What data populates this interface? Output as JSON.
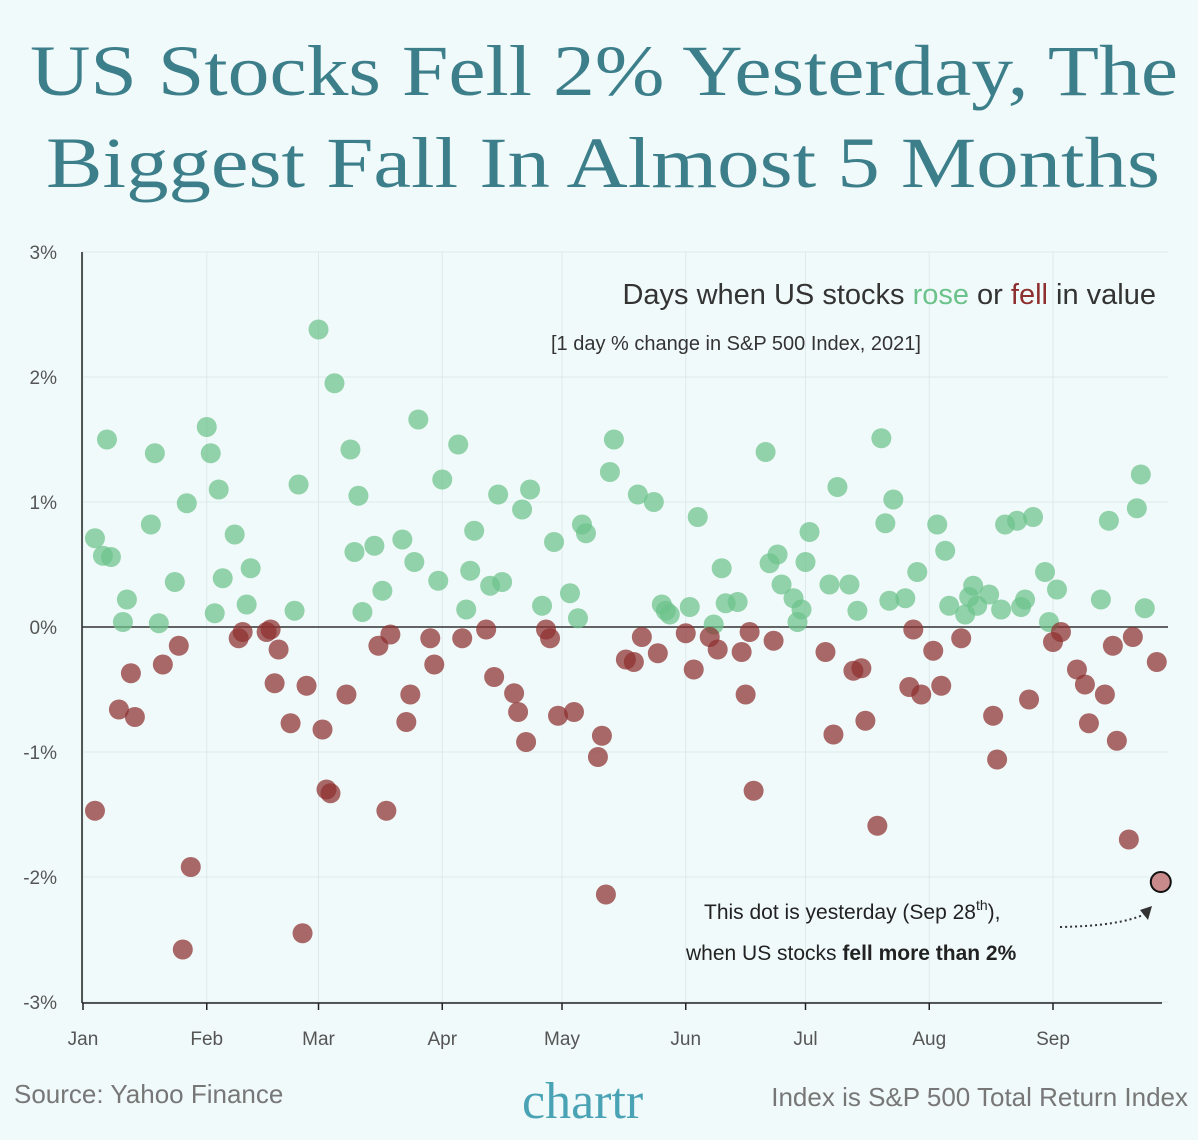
{
  "title": {
    "line1": "US Stocks Fell 2% Yesterday, The",
    "line2": "Biggest Fall In Almost 5 Months"
  },
  "subtitle": {
    "pre": "Days when US stocks ",
    "rose": "rose",
    "mid": " or ",
    "fell": "fell",
    "post": " in value",
    "note": "[1 day % change in S&P 500 Index, 2021]"
  },
  "annotation": {
    "line1_pre": "This dot is yesterday (Sep 28",
    "line1_sup": "th",
    "line1_post": "),",
    "line2_pre": "when US stocks ",
    "line2_bold": "fell more than 2%"
  },
  "footer": {
    "source": "Source: Yahoo Finance",
    "logo": "chartr",
    "note": "Index is S&P 500 Total Return Index"
  },
  "colors": {
    "rose": "#6cc28b",
    "fell": "#8e2f2f",
    "title": "#3c7f8b",
    "background": "#f1fafa",
    "highlight": "#c98a8c"
  },
  "chart_data": {
    "type": "scatter",
    "title": "Days when US stocks rose or fell in value",
    "subtitle": "[1 day % change in S&P 500 Index, 2021]",
    "xlabel": "",
    "ylabel": "",
    "xlim": [
      "2021-01-01",
      "2021-09-30"
    ],
    "ylim": [
      -3,
      3
    ],
    "x_ticks": [
      "Jan",
      "Feb",
      "Mar",
      "Apr",
      "May",
      "Jun",
      "Jul",
      "Aug",
      "Sep"
    ],
    "y_ticks": [
      "3%",
      "2%",
      "1%",
      "0%",
      "-1%",
      "-2%",
      "-3%"
    ],
    "grid": true,
    "series": [
      {
        "name": "rose",
        "points": [
          [
            "2021-01-04",
            0.71
          ],
          [
            "2021-01-06",
            0.57
          ],
          [
            "2021-01-07",
            1.5
          ],
          [
            "2021-01-08",
            0.56
          ],
          [
            "2021-01-11",
            0.04
          ],
          [
            "2021-01-12",
            0.22
          ],
          [
            "2021-01-18",
            0.82
          ],
          [
            "2021-01-19",
            1.39
          ],
          [
            "2021-01-20",
            0.03
          ],
          [
            "2021-01-24",
            0.36
          ],
          [
            "2021-01-27",
            0.99
          ],
          [
            "2021-02-01",
            1.6
          ],
          [
            "2021-02-02",
            1.39
          ],
          [
            "2021-02-03",
            0.11
          ],
          [
            "2021-02-04",
            1.1
          ],
          [
            "2021-02-05",
            0.39
          ],
          [
            "2021-02-08",
            0.74
          ],
          [
            "2021-02-11",
            0.18
          ],
          [
            "2021-02-12",
            0.47
          ],
          [
            "2021-02-23",
            0.13
          ],
          [
            "2021-02-24",
            1.14
          ],
          [
            "2021-03-01",
            2.38
          ],
          [
            "2021-03-05",
            1.95
          ],
          [
            "2021-03-09",
            1.42
          ],
          [
            "2021-03-10",
            0.6
          ],
          [
            "2021-03-11",
            1.05
          ],
          [
            "2021-03-12",
            0.12
          ],
          [
            "2021-03-15",
            0.65
          ],
          [
            "2021-03-17",
            0.29
          ],
          [
            "2021-03-22",
            0.7
          ],
          [
            "2021-03-25",
            0.52
          ],
          [
            "2021-03-26",
            1.66
          ],
          [
            "2021-03-31",
            0.37
          ],
          [
            "2021-04-01",
            1.18
          ],
          [
            "2021-04-05",
            1.46
          ],
          [
            "2021-04-07",
            0.14
          ],
          [
            "2021-04-08",
            0.45
          ],
          [
            "2021-04-09",
            0.77
          ],
          [
            "2021-04-13",
            0.33
          ],
          [
            "2021-04-15",
            1.06
          ],
          [
            "2021-04-16",
            0.36
          ],
          [
            "2021-04-21",
            0.94
          ],
          [
            "2021-04-23",
            1.1
          ],
          [
            "2021-04-26",
            0.17
          ],
          [
            "2021-04-29",
            0.68
          ],
          [
            "2021-05-03",
            0.27
          ],
          [
            "2021-05-05",
            0.07
          ],
          [
            "2021-05-06",
            0.82
          ],
          [
            "2021-05-07",
            0.75
          ],
          [
            "2021-05-13",
            1.24
          ],
          [
            "2021-05-14",
            1.5
          ],
          [
            "2021-05-20",
            1.06
          ],
          [
            "2021-05-24",
            1.0
          ],
          [
            "2021-05-26",
            0.18
          ],
          [
            "2021-05-27",
            0.13
          ],
          [
            "2021-05-28",
            0.1
          ],
          [
            "2021-06-02",
            0.16
          ],
          [
            "2021-06-04",
            0.88
          ],
          [
            "2021-06-08",
            0.02
          ],
          [
            "2021-06-10",
            0.47
          ],
          [
            "2021-06-11",
            0.19
          ],
          [
            "2021-06-14",
            0.2
          ],
          [
            "2021-06-21",
            1.4
          ],
          [
            "2021-06-22",
            0.51
          ],
          [
            "2021-06-24",
            0.58
          ],
          [
            "2021-06-25",
            0.34
          ],
          [
            "2021-06-28",
            0.23
          ],
          [
            "2021-06-29",
            0.04
          ],
          [
            "2021-06-30",
            0.14
          ],
          [
            "2021-07-01",
            0.52
          ],
          [
            "2021-07-02",
            0.76
          ],
          [
            "2021-07-07",
            0.34
          ],
          [
            "2021-07-09",
            1.12
          ],
          [
            "2021-07-12",
            0.34
          ],
          [
            "2021-07-14",
            0.13
          ],
          [
            "2021-07-20",
            1.51
          ],
          [
            "2021-07-21",
            0.83
          ],
          [
            "2021-07-22",
            0.21
          ],
          [
            "2021-07-23",
            1.02
          ],
          [
            "2021-07-26",
            0.23
          ],
          [
            "2021-07-29",
            0.44
          ],
          [
            "2021-08-03",
            0.82
          ],
          [
            "2021-08-05",
            0.61
          ],
          [
            "2021-08-06",
            0.17
          ],
          [
            "2021-08-10",
            0.1
          ],
          [
            "2021-08-11",
            0.24
          ],
          [
            "2021-08-12",
            0.33
          ],
          [
            "2021-08-13",
            0.17
          ],
          [
            "2021-08-16",
            0.26
          ],
          [
            "2021-08-19",
            0.14
          ],
          [
            "2021-08-20",
            0.82
          ],
          [
            "2021-08-23",
            0.85
          ],
          [
            "2021-08-24",
            0.16
          ],
          [
            "2021-08-25",
            0.22
          ],
          [
            "2021-08-27",
            0.88
          ],
          [
            "2021-08-30",
            0.44
          ],
          [
            "2021-08-31",
            0.04
          ],
          [
            "2021-09-02",
            0.3
          ],
          [
            "2021-09-13",
            0.22
          ],
          [
            "2021-09-15",
            0.85
          ],
          [
            "2021-09-22",
            0.95
          ],
          [
            "2021-09-23",
            1.22
          ],
          [
            "2021-09-24",
            0.15
          ]
        ]
      },
      {
        "name": "fell",
        "points": [
          [
            "2021-01-04",
            -1.47
          ],
          [
            "2021-01-10",
            -0.66
          ],
          [
            "2021-01-13",
            -0.37
          ],
          [
            "2021-01-14",
            -0.72
          ],
          [
            "2021-01-21",
            -0.3
          ],
          [
            "2021-01-25",
            -0.15
          ],
          [
            "2021-01-26",
            -2.58
          ],
          [
            "2021-01-28",
            -1.92
          ],
          [
            "2021-02-09",
            -0.09
          ],
          [
            "2021-02-10",
            -0.04
          ],
          [
            "2021-02-16",
            -0.04
          ],
          [
            "2021-02-17",
            -0.02
          ],
          [
            "2021-02-18",
            -0.45
          ],
          [
            "2021-02-19",
            -0.18
          ],
          [
            "2021-02-22",
            -0.77
          ],
          [
            "2021-02-25",
            -2.45
          ],
          [
            "2021-02-26",
            -0.47
          ],
          [
            "2021-03-02",
            -0.82
          ],
          [
            "2021-03-03",
            -1.3
          ],
          [
            "2021-03-04",
            -1.33
          ],
          [
            "2021-03-08",
            -0.54
          ],
          [
            "2021-03-16",
            -0.15
          ],
          [
            "2021-03-18",
            -1.47
          ],
          [
            "2021-03-19",
            -0.06
          ],
          [
            "2021-03-23",
            -0.76
          ],
          [
            "2021-03-24",
            -0.54
          ],
          [
            "2021-03-29",
            -0.09
          ],
          [
            "2021-03-30",
            -0.3
          ],
          [
            "2021-04-06",
            -0.09
          ],
          [
            "2021-04-12",
            -0.02
          ],
          [
            "2021-04-14",
            -0.4
          ],
          [
            "2021-04-19",
            -0.53
          ],
          [
            "2021-04-20",
            -0.68
          ],
          [
            "2021-04-22",
            -0.92
          ],
          [
            "2021-04-27",
            -0.02
          ],
          [
            "2021-04-28",
            -0.09
          ],
          [
            "2021-04-30",
            -0.71
          ],
          [
            "2021-05-04",
            -0.68
          ],
          [
            "2021-05-10",
            -1.04
          ],
          [
            "2021-05-11",
            -0.87
          ],
          [
            "2021-05-12",
            -2.14
          ],
          [
            "2021-05-17",
            -0.26
          ],
          [
            "2021-05-19",
            -0.28
          ],
          [
            "2021-05-21",
            -0.08
          ],
          [
            "2021-05-25",
            -0.21
          ],
          [
            "2021-06-01",
            -0.05
          ],
          [
            "2021-06-03",
            -0.34
          ],
          [
            "2021-06-07",
            -0.08
          ],
          [
            "2021-06-09",
            -0.18
          ],
          [
            "2021-06-15",
            -0.2
          ],
          [
            "2021-06-16",
            -0.54
          ],
          [
            "2021-06-17",
            -0.04
          ],
          [
            "2021-06-18",
            -1.31
          ],
          [
            "2021-06-23",
            -0.11
          ],
          [
            "2021-07-06",
            -0.2
          ],
          [
            "2021-07-08",
            -0.86
          ],
          [
            "2021-07-13",
            -0.35
          ],
          [
            "2021-07-15",
            -0.33
          ],
          [
            "2021-07-16",
            -0.75
          ],
          [
            "2021-07-19",
            -1.59
          ],
          [
            "2021-07-27",
            -0.48
          ],
          [
            "2021-07-28",
            -0.02
          ],
          [
            "2021-07-30",
            -0.54
          ],
          [
            "2021-08-02",
            -0.19
          ],
          [
            "2021-08-04",
            -0.47
          ],
          [
            "2021-08-09",
            -0.09
          ],
          [
            "2021-08-17",
            -0.71
          ],
          [
            "2021-08-18",
            -1.06
          ],
          [
            "2021-08-26",
            -0.58
          ],
          [
            "2021-09-01",
            -0.12
          ],
          [
            "2021-09-03",
            -0.04
          ],
          [
            "2021-09-07",
            -0.34
          ],
          [
            "2021-09-09",
            -0.46
          ],
          [
            "2021-09-10",
            -0.77
          ],
          [
            "2021-09-14",
            -0.54
          ],
          [
            "2021-09-16",
            -0.15
          ],
          [
            "2021-09-17",
            -0.91
          ],
          [
            "2021-09-20",
            -1.7
          ],
          [
            "2021-09-21",
            -0.08
          ],
          [
            "2021-09-27",
            -0.28
          ]
        ]
      },
      {
        "name": "",
        "highlight": true,
        "points": [
          [
            "2021-09-28",
            -2.04
          ]
        ]
      }
    ]
  }
}
